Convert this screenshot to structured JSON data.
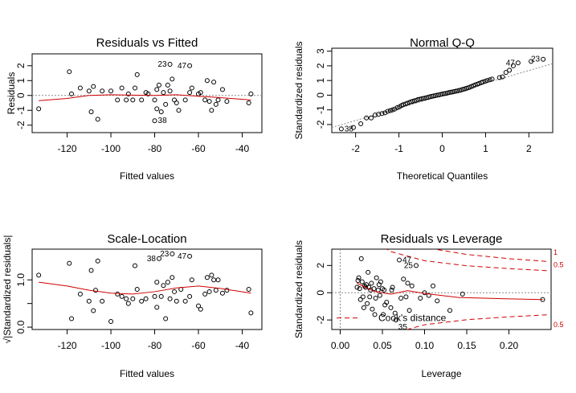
{
  "figure": {
    "colors": {
      "points": "#000000",
      "smooth": "#d00000",
      "reference": "#8a8a8a",
      "cook": "#d00000"
    }
  },
  "chart_data": [
    {
      "id": "rvf",
      "type": "scatter",
      "title": "Residuals vs Fitted",
      "xlabel": "Fitted values",
      "ylabel": "Residuals",
      "xlim": [
        -136,
        -31
      ],
      "ylim": [
        -2.5,
        2.8
      ],
      "xticks": [
        -120,
        -100,
        -80,
        -60,
        -40
      ],
      "yticks": [
        -2,
        -1,
        0,
        1,
        2
      ],
      "ref_line_y": 0,
      "points": [
        [
          -133,
          -0.9
        ],
        [
          -119,
          1.6
        ],
        [
          -118,
          0.1
        ],
        [
          -114,
          0.5
        ],
        [
          -110,
          0.3
        ],
        [
          -109,
          -1.1
        ],
        [
          -108,
          0.6
        ],
        [
          -106,
          -1.6
        ],
        [
          -104,
          0.3
        ],
        [
          -100,
          0.3
        ],
        [
          -97,
          -0.3
        ],
        [
          -95,
          0.5
        ],
        [
          -93,
          -0.3
        ],
        [
          -92,
          0.1
        ],
        [
          -90,
          -0.3
        ],
        [
          -89,
          0.5
        ],
        [
          -88,
          1.4
        ],
        [
          -86,
          -0.3
        ],
        [
          -84,
          0.2
        ],
        [
          -83,
          0.1
        ],
        [
          -80,
          -0.3
        ],
        [
          -79,
          -0.9
        ],
        [
          -79,
          0.4
        ],
        [
          -78,
          0.7
        ],
        [
          -77,
          -1.1
        ],
        [
          -76,
          0.2
        ],
        [
          -75,
          -0.6
        ],
        [
          -74,
          0.7
        ],
        [
          -73,
          0.3
        ],
        [
          -72,
          1.1
        ],
        [
          -71,
          -0.3
        ],
        [
          -70,
          -0.5
        ],
        [
          -69,
          -1.0
        ],
        [
          -66,
          -0.3
        ],
        [
          -64,
          0.2
        ],
        [
          -63,
          0.5
        ],
        [
          -60,
          0.1
        ],
        [
          -59,
          0.2
        ],
        [
          -57,
          -0.3
        ],
        [
          -56,
          1.0
        ],
        [
          -55,
          -0.4
        ],
        [
          -54,
          -1.0
        ],
        [
          -53,
          0.9
        ],
        [
          -52,
          -0.6
        ],
        [
          -51,
          -0.3
        ],
        [
          -49,
          0.4
        ],
        [
          -47,
          -0.4
        ],
        [
          -37,
          -0.5
        ],
        [
          -36,
          0.1
        ],
        [
          -80,
          -1.7
        ],
        [
          -73,
          2.1
        ],
        [
          -64,
          2.0
        ]
      ],
      "smooth": [
        [
          -133,
          -0.35
        ],
        [
          -120,
          -0.2
        ],
        [
          -110,
          0.0
        ],
        [
          -100,
          0.05
        ],
        [
          -90,
          0.02
        ],
        [
          -80,
          0.0
        ],
        [
          -70,
          0.05
        ],
        [
          -60,
          -0.05
        ],
        [
          -50,
          -0.15
        ],
        [
          -36,
          -0.3
        ]
      ],
      "annotations": [
        {
          "label": "23",
          "x": -73,
          "y": 2.1,
          "pos": "left"
        },
        {
          "label": "47",
          "x": -64,
          "y": 2.0,
          "pos": "left"
        },
        {
          "label": "38",
          "x": -80,
          "y": -1.7,
          "pos": "right"
        }
      ]
    },
    {
      "id": "qq",
      "type": "scatter",
      "title": "Normal Q-Q",
      "xlabel": "Theoretical Quantiles",
      "ylabel": "Standardized residuals",
      "xlim": [
        -2.55,
        2.55
      ],
      "ylim": [
        -2.55,
        3.2
      ],
      "xticks": [
        -2,
        -1,
        0,
        1,
        2
      ],
      "yticks": [
        -2,
        -1,
        0,
        1,
        2,
        3
      ],
      "ref_line": [
        [
          -2.55,
          -2.2
        ],
        [
          2.55,
          2.15
        ]
      ],
      "points": [
        [
          -2.33,
          -2.3
        ],
        [
          -2.05,
          -2.2
        ],
        [
          -1.88,
          -1.95
        ],
        [
          -1.75,
          -1.55
        ],
        [
          -1.64,
          -1.55
        ],
        [
          -1.55,
          -1.35
        ],
        [
          -1.47,
          -1.3
        ],
        [
          -1.39,
          -1.25
        ],
        [
          -1.32,
          -1.2
        ],
        [
          -1.26,
          -1.1
        ],
        [
          -1.2,
          -1.05
        ],
        [
          -1.15,
          -1.0
        ],
        [
          -1.1,
          -0.95
        ],
        [
          -1.04,
          -0.85
        ],
        [
          -0.99,
          -0.8
        ],
        [
          -0.94,
          -0.7
        ],
        [
          -0.9,
          -0.65
        ],
        [
          -0.85,
          -0.6
        ],
        [
          -0.81,
          -0.55
        ],
        [
          -0.76,
          -0.5
        ],
        [
          -0.72,
          -0.45
        ],
        [
          -0.68,
          -0.42
        ],
        [
          -0.64,
          -0.38
        ],
        [
          -0.6,
          -0.35
        ],
        [
          -0.56,
          -0.3
        ],
        [
          -0.52,
          -0.28
        ],
        [
          -0.48,
          -0.25
        ],
        [
          -0.44,
          -0.22
        ],
        [
          -0.4,
          -0.2
        ],
        [
          -0.36,
          -0.17
        ],
        [
          -0.32,
          -0.14
        ],
        [
          -0.28,
          -0.1
        ],
        [
          -0.24,
          -0.08
        ],
        [
          -0.2,
          -0.05
        ],
        [
          -0.16,
          -0.03
        ],
        [
          -0.12,
          0.0
        ],
        [
          -0.08,
          0.02
        ],
        [
          -0.04,
          0.05
        ],
        [
          0.0,
          0.08
        ],
        [
          0.04,
          0.1
        ],
        [
          0.08,
          0.12
        ],
        [
          0.12,
          0.15
        ],
        [
          0.16,
          0.18
        ],
        [
          0.2,
          0.2
        ],
        [
          0.24,
          0.22
        ],
        [
          0.28,
          0.25
        ],
        [
          0.32,
          0.28
        ],
        [
          0.36,
          0.3
        ],
        [
          0.4,
          0.33
        ],
        [
          0.44,
          0.36
        ],
        [
          0.48,
          0.4
        ],
        [
          0.52,
          0.43
        ],
        [
          0.56,
          0.47
        ],
        [
          0.6,
          0.5
        ],
        [
          0.64,
          0.55
        ],
        [
          0.68,
          0.6
        ],
        [
          0.72,
          0.65
        ],
        [
          0.76,
          0.7
        ],
        [
          0.81,
          0.75
        ],
        [
          0.85,
          0.8
        ],
        [
          0.9,
          0.85
        ],
        [
          0.94,
          0.9
        ],
        [
          0.99,
          0.95
        ],
        [
          1.04,
          1.0
        ],
        [
          1.1,
          1.05
        ],
        [
          1.15,
          1.1
        ],
        [
          1.32,
          1.2
        ],
        [
          1.39,
          1.25
        ],
        [
          1.47,
          1.55
        ],
        [
          1.55,
          1.7
        ],
        [
          1.64,
          2.0
        ],
        [
          1.75,
          2.2
        ],
        [
          2.05,
          2.3
        ],
        [
          2.33,
          2.45
        ]
      ],
      "annotations": [
        {
          "label": "47",
          "x": 1.75,
          "y": 2.2,
          "pos": "left"
        },
        {
          "label": "23",
          "x": 2.33,
          "y": 2.45,
          "pos": "left"
        },
        {
          "label": "38",
          "x": -2.33,
          "y": -2.3,
          "pos": "right"
        }
      ]
    },
    {
      "id": "sl",
      "type": "scatter",
      "title": "Scale-Location",
      "xlabel": "Fitted values",
      "ylabel": "√|Standardized residuals|",
      "xlim": [
        -136,
        -31
      ],
      "ylim": [
        -0.05,
        1.65
      ],
      "xticks": [
        -120,
        -100,
        -80,
        -60,
        -40
      ],
      "yticks": [
        0.0,
        0.5,
        1.0
      ],
      "ytick_labels": [
        "0.0",
        "",
        "1.0"
      ],
      "points": [
        [
          -133,
          1.1
        ],
        [
          -119,
          1.35
        ],
        [
          -118,
          0.18
        ],
        [
          -114,
          0.7
        ],
        [
          -110,
          0.55
        ],
        [
          -109,
          1.2
        ],
        [
          -108,
          0.35
        ],
        [
          -107,
          0.78
        ],
        [
          -106,
          1.4
        ],
        [
          -104,
          0.55
        ],
        [
          -100,
          0.12
        ],
        [
          -97,
          0.7
        ],
        [
          -95,
          0.65
        ],
        [
          -93,
          0.6
        ],
        [
          -92,
          0.5
        ],
        [
          -90,
          0.6
        ],
        [
          -89,
          1.3
        ],
        [
          -88,
          0.8
        ],
        [
          -86,
          0.55
        ],
        [
          -84,
          0.6
        ],
        [
          -80,
          0.65
        ],
        [
          -79,
          0.42
        ],
        [
          -79,
          0.95
        ],
        [
          -78,
          1.45
        ],
        [
          -77,
          0.65
        ],
        [
          -76,
          0.88
        ],
        [
          -75,
          0.18
        ],
        [
          -74,
          0.95
        ],
        [
          -73,
          0.6
        ],
        [
          -72,
          1.05
        ],
        [
          -71,
          0.75
        ],
        [
          -70,
          0.55
        ],
        [
          -68,
          0.8
        ],
        [
          -66,
          0.55
        ],
        [
          -64,
          0.65
        ],
        [
          -63,
          1.0
        ],
        [
          -60,
          0.45
        ],
        [
          -59,
          0.38
        ],
        [
          -57,
          0.7
        ],
        [
          -56,
          1.05
        ],
        [
          -55,
          0.75
        ],
        [
          -54,
          1.1
        ],
        [
          -53,
          1.0
        ],
        [
          -52,
          0.78
        ],
        [
          -51,
          1.0
        ],
        [
          -49,
          0.72
        ],
        [
          -47,
          0.78
        ],
        [
          -37,
          0.8
        ],
        [
          -36,
          0.3
        ],
        [
          -64,
          1.5
        ],
        [
          -72,
          1.55
        ]
      ],
      "smooth": [
        [
          -133,
          0.95
        ],
        [
          -120,
          0.87
        ],
        [
          -110,
          0.78
        ],
        [
          -100,
          0.72
        ],
        [
          -90,
          0.7
        ],
        [
          -80,
          0.75
        ],
        [
          -70,
          0.83
        ],
        [
          -60,
          0.87
        ],
        [
          -50,
          0.82
        ],
        [
          -36,
          0.72
        ]
      ],
      "annotations": [
        {
          "label": "38",
          "x": -78,
          "y": 1.45,
          "pos": "left"
        },
        {
          "label": "23",
          "x": -72,
          "y": 1.55,
          "pos": "left"
        },
        {
          "label": "47",
          "x": -64,
          "y": 1.5,
          "pos": "left"
        }
      ]
    },
    {
      "id": "rvl",
      "type": "scatter",
      "title": "Residuals vs Leverage",
      "xlabel": "Leverage",
      "ylabel": "Standardized residuals",
      "xlim": [
        -0.01,
        0.25
      ],
      "ylim": [
        -2.7,
        3.2
      ],
      "xticks": [
        0.0,
        0.05,
        0.1,
        0.15,
        0.2
      ],
      "xtick_labels": [
        "0.00",
        "0.05",
        "0.10",
        "0.15",
        "0.20"
      ],
      "yticks": [
        -2,
        0,
        2
      ],
      "ref_line_y": 0,
      "ref_line_x": 0,
      "points": [
        [
          0.02,
          0.4
        ],
        [
          0.021,
          0.9
        ],
        [
          0.022,
          1.1
        ],
        [
          0.023,
          0.3
        ],
        [
          0.024,
          -0.5
        ],
        [
          0.025,
          2.5
        ],
        [
          0.026,
          0.8
        ],
        [
          0.027,
          -0.3
        ],
        [
          0.028,
          -1.1
        ],
        [
          0.029,
          0.5
        ],
        [
          0.03,
          0.4
        ],
        [
          0.031,
          0.6
        ],
        [
          0.032,
          -0.8
        ],
        [
          0.033,
          1.5
        ],
        [
          0.034,
          0.4
        ],
        [
          0.035,
          -0.3
        ],
        [
          0.036,
          0.2
        ],
        [
          0.037,
          0.7
        ],
        [
          0.038,
          -1.2
        ],
        [
          0.04,
          0.3
        ],
        [
          0.041,
          -1.6
        ],
        [
          0.042,
          -0.4
        ],
        [
          0.043,
          1.1
        ],
        [
          0.045,
          0.2
        ],
        [
          0.046,
          0.6
        ],
        [
          0.047,
          -0.2
        ],
        [
          0.048,
          0.8
        ],
        [
          0.05,
          0.3
        ],
        [
          0.051,
          -1.6
        ],
        [
          0.052,
          0.2
        ],
        [
          0.053,
          -0.9
        ],
        [
          0.055,
          -0.7
        ],
        [
          0.06,
          -1.1
        ],
        [
          0.061,
          0.2
        ],
        [
          0.062,
          0.4
        ],
        [
          0.065,
          -1.5
        ],
        [
          0.066,
          -2.0
        ],
        [
          0.07,
          2.4
        ],
        [
          0.072,
          -0.4
        ],
        [
          0.075,
          1.0
        ],
        [
          0.078,
          -0.3
        ],
        [
          0.08,
          0.7
        ],
        [
          0.082,
          -1.3
        ],
        [
          0.085,
          0.5
        ],
        [
          0.09,
          2.0
        ],
        [
          0.095,
          -0.4
        ],
        [
          0.1,
          0.0
        ],
        [
          0.105,
          -0.2
        ],
        [
          0.11,
          0.5
        ],
        [
          0.115,
          -0.6
        ],
        [
          0.13,
          -1.3
        ],
        [
          0.145,
          -0.1
        ],
        [
          0.24,
          -0.5
        ]
      ],
      "smooth": [
        [
          0.02,
          0.7
        ],
        [
          0.04,
          0.1
        ],
        [
          0.06,
          -0.1
        ],
        [
          0.08,
          0.15
        ],
        [
          0.1,
          -0.05
        ],
        [
          0.14,
          -0.35
        ],
        [
          0.2,
          -0.45
        ],
        [
          0.24,
          -0.5
        ]
      ],
      "cook_curves": [
        {
          "level": 0.5,
          "sign": 1,
          "pts": [
            [
              0.01,
              7.0
            ],
            [
              0.03,
              4.1
            ],
            [
              0.06,
              3.02
            ],
            [
              0.1,
              2.35
            ],
            [
              0.15,
              1.98
            ],
            [
              0.2,
              1.77
            ],
            [
              0.245,
              1.62
            ]
          ]
        },
        {
          "level": 1,
          "sign": 1,
          "pts": [
            [
              0.012,
              9.0
            ],
            [
              0.04,
              5.0
            ],
            [
              0.07,
              3.9
            ],
            [
              0.1,
              3.32
            ],
            [
              0.15,
              2.81
            ],
            [
              0.2,
              2.5
            ],
            [
              0.245,
              2.3
            ]
          ]
        },
        {
          "level": 0.5,
          "sign": -1,
          "pts": [
            [
              0.01,
              -7.0
            ],
            [
              0.03,
              -4.1
            ],
            [
              0.06,
              -3.02
            ],
            [
              0.1,
              -2.35
            ],
            [
              0.15,
              -1.98
            ],
            [
              0.2,
              -1.77
            ],
            [
              0.245,
              -1.62
            ]
          ]
        }
      ],
      "cook_label": "Cook's distance",
      "cook_right_labels": [
        {
          "label": "1",
          "y": 2.95
        },
        {
          "label": "0.5",
          "y": 2.05
        },
        {
          "label": "0.5",
          "y": -2.35
        }
      ],
      "annotations": [
        {
          "label": "47",
          "x": 0.07,
          "y": 2.4,
          "pos": "right"
        },
        {
          "label": "25",
          "x": 0.09,
          "y": 2.0,
          "pos": "left"
        },
        {
          "label": "35",
          "x": 0.066,
          "y": -2.0,
          "pos": "right-below"
        }
      ]
    }
  ]
}
